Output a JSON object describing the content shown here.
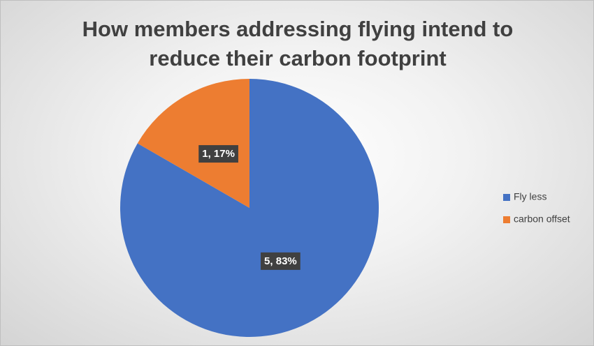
{
  "chart_data": {
    "type": "pie",
    "title": "How members addressing flying intend to reduce their carbon footprint",
    "categories": [
      "Fly less",
      "carbon offset"
    ],
    "values": [
      5,
      1
    ],
    "value_labels": [
      "5, 83%",
      "1, 17%"
    ],
    "colors": [
      "#4472c4",
      "#ed7d31"
    ],
    "legend": "right"
  }
}
